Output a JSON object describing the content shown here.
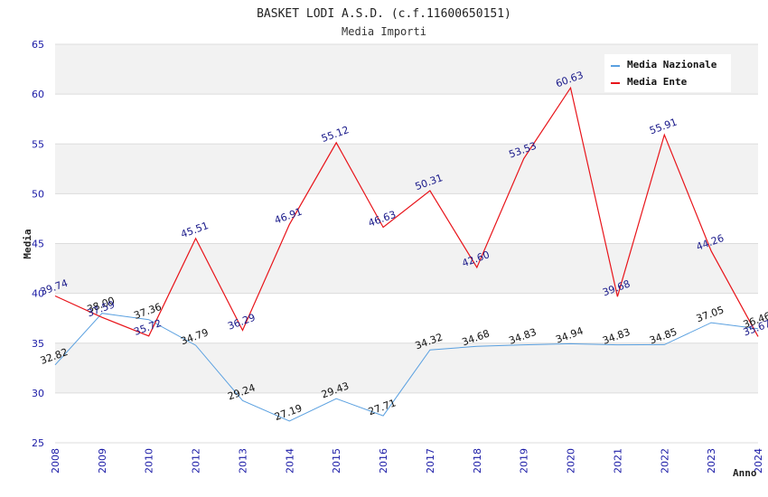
{
  "chart_data": {
    "type": "line",
    "title": "BASKET LODI A.S.D. (c.f.11600650151)",
    "subtitle": "Media Importi",
    "xlabel": "Anno",
    "ylabel": "Media",
    "categories": [
      "2008",
      "2009",
      "2010",
      "2012",
      "2013",
      "2014",
      "2015",
      "2016",
      "2017",
      "2018",
      "2019",
      "2020",
      "2021",
      "2022",
      "2023",
      "2024"
    ],
    "ylim": [
      25,
      65
    ],
    "yticks": [
      25,
      30,
      35,
      40,
      45,
      50,
      55,
      60,
      65
    ],
    "grid": true,
    "legend_position": "top-right",
    "series": [
      {
        "name": "Media Nazionale",
        "color": "#5aa0e0",
        "label_color": "#111111",
        "values": [
          32.82,
          38.0,
          37.36,
          34.79,
          29.24,
          27.19,
          29.43,
          27.71,
          34.32,
          34.68,
          34.83,
          34.94,
          34.83,
          34.85,
          37.05,
          36.46
        ]
      },
      {
        "name": "Media Ente",
        "color": "#e8141a",
        "label_color": "#1a1a8a",
        "values": [
          39.74,
          37.59,
          35.72,
          45.51,
          36.29,
          46.91,
          55.12,
          46.63,
          50.31,
          42.6,
          53.53,
          60.63,
          39.68,
          55.91,
          44.26,
          35.67
        ]
      }
    ]
  }
}
